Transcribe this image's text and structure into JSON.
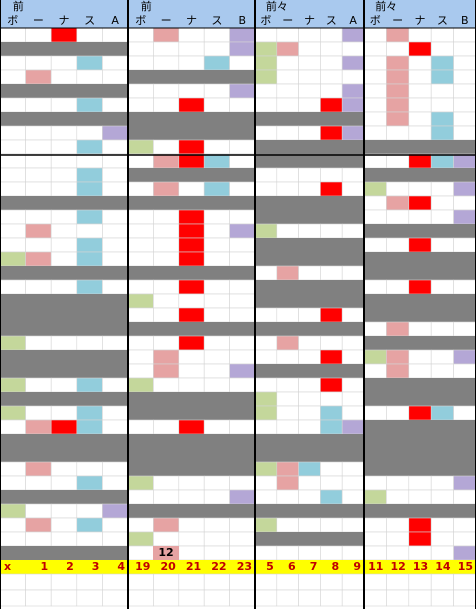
{
  "panels": [
    {
      "title": "前",
      "columns": [
        "ボ",
        "ー",
        "ナ",
        "ス",
        "A"
      ],
      "footer": [
        "x",
        "1",
        "2",
        "3",
        "4"
      ]
    },
    {
      "title": "前",
      "columns": [
        "ボ",
        "ー",
        "ナ",
        "ス",
        "B"
      ],
      "footer": [
        "19",
        "20",
        "21",
        "22",
        "23"
      ]
    },
    {
      "title": "前々",
      "columns": [
        "ボ",
        "ー",
        "ナ",
        "ス",
        "A"
      ],
      "footer": [
        "5",
        "6",
        "7",
        "8",
        "9"
      ]
    },
    {
      "title": "前々",
      "columns": [
        "ボ",
        "ー",
        "ナ",
        "ス",
        "B"
      ],
      "footer": [
        "11",
        "12",
        "13",
        "14",
        "15"
      ]
    }
  ],
  "annotation": "12"
}
